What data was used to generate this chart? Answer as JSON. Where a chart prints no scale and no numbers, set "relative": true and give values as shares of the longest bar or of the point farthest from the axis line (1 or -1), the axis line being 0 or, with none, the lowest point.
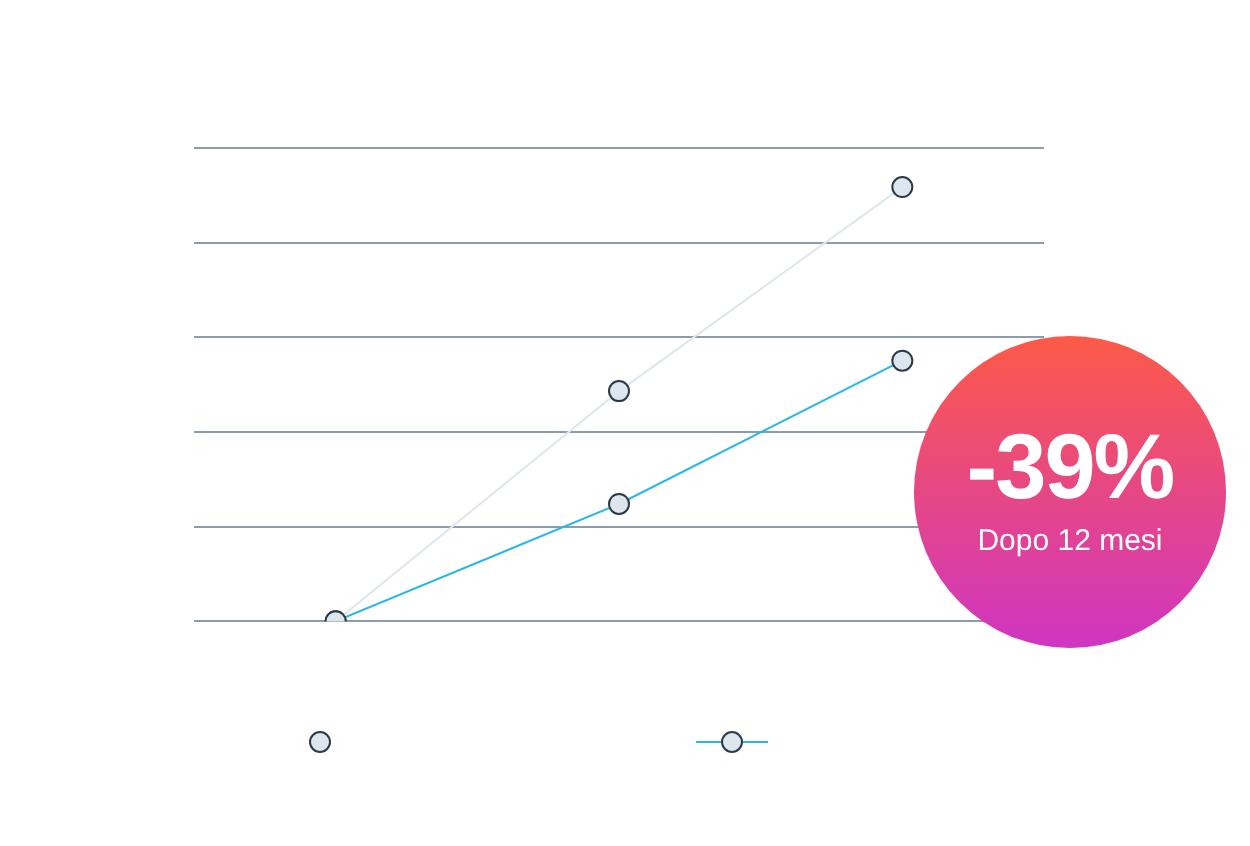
{
  "chart_data": {
    "type": "line",
    "relative": true,
    "categories": [
      null,
      null,
      null
    ],
    "series": [
      {
        "color": "#dde6ec",
        "values": [
          0,
          0.53,
          1
        ]
      },
      {
        "color": "#29b6e8",
        "values": [
          0,
          0.27,
          0.6
        ]
      }
    ],
    "marker": "circle",
    "grid": "y",
    "annotations": [
      "-39%",
      "Dopo 12 mesi"
    ]
  }
}
